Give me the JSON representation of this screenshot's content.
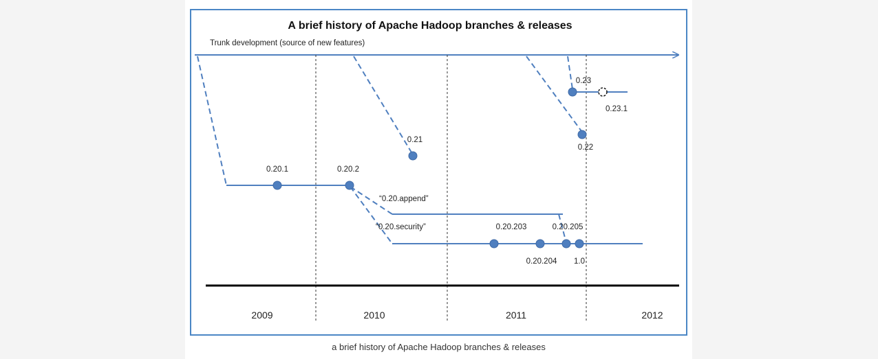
{
  "title": "A brief history of Apache Hadoop branches & releases",
  "trunk_label": "Trunk development (source of new features)",
  "branch_labels": {
    "append": "“0.20.append”",
    "security": "“0.20.security”"
  },
  "releases": {
    "r0201": "0.20.1",
    "r0202": "0.20.2",
    "r021": "0.21",
    "r022": "0.22",
    "r023": "0.23",
    "r0231": "0.23.1",
    "r020203": "0.20.203",
    "r020204": "0.20.204",
    "r020205": "0.20.205",
    "r10": "1.0"
  },
  "years": [
    "2009",
    "2010",
    "2011",
    "2012"
  ],
  "caption": "a brief history of Apache Hadoop branches & releases",
  "colors": {
    "line": "#4f7fbf",
    "node": "#4f7fbf",
    "frame": "#4a86c5",
    "axis": "#000000"
  }
}
